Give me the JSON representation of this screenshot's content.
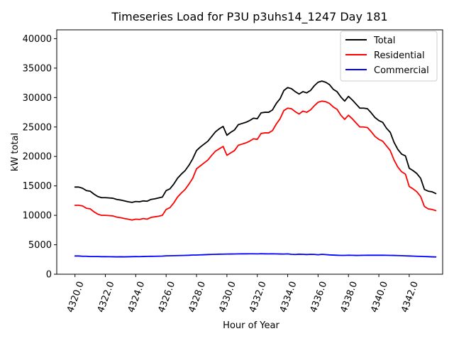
{
  "chart_data": {
    "type": "line",
    "title": "Timeseries Load for P3U p3uhs14_1247  Day 181",
    "xlabel": "Hour of Year",
    "ylabel": "kW total",
    "xlim": [
      4318.8,
      4344.2
    ],
    "ylim": [
      0,
      41500
    ],
    "xticks": [
      4320,
      4322,
      4324,
      4326,
      4328,
      4330,
      4332,
      4334,
      4336,
      4338,
      4340,
      4342
    ],
    "xtick_labels": [
      "4320.0",
      "4322.0",
      "4324.0",
      "4326.0",
      "4328.0",
      "4330.0",
      "4332.0",
      "4334.0",
      "4336.0",
      "4338.0",
      "4340.0",
      "4342.0"
    ],
    "yticks": [
      0,
      5000,
      10000,
      15000,
      20000,
      25000,
      30000,
      35000,
      40000
    ],
    "ytick_labels": [
      "0",
      "5000",
      "10000",
      "15000",
      "20000",
      "25000",
      "30000",
      "35000",
      "40000"
    ],
    "legend_position": "top-right",
    "x": [
      4320.0,
      4320.25,
      4320.5,
      4320.75,
      4321.0,
      4321.25,
      4321.5,
      4321.75,
      4322.0,
      4322.25,
      4322.5,
      4322.75,
      4323.0,
      4323.25,
      4323.5,
      4323.75,
      4324.0,
      4324.25,
      4324.5,
      4324.75,
      4325.0,
      4325.25,
      4325.5,
      4325.75,
      4326.0,
      4326.25,
      4326.5,
      4326.75,
      4327.0,
      4327.25,
      4327.5,
      4327.75,
      4328.0,
      4328.25,
      4328.5,
      4328.75,
      4329.0,
      4329.25,
      4329.5,
      4329.75,
      4330.0,
      4330.25,
      4330.5,
      4330.75,
      4331.0,
      4331.25,
      4331.5,
      4331.75,
      4332.0,
      4332.25,
      4332.5,
      4332.75,
      4333.0,
      4333.25,
      4333.5,
      4333.75,
      4334.0,
      4334.25,
      4334.5,
      4334.75,
      4335.0,
      4335.25,
      4335.5,
      4335.75,
      4336.0,
      4336.25,
      4336.5,
      4336.75,
      4337.0,
      4337.25,
      4337.5,
      4337.75,
      4338.0,
      4338.25,
      4338.5,
      4338.75,
      4339.0,
      4339.25,
      4339.5,
      4339.75,
      4340.0,
      4340.25,
      4340.5,
      4340.75,
      4341.0,
      4341.25,
      4341.5,
      4341.75,
      4342.0,
      4342.25,
      4342.5,
      4342.75,
      4343.0,
      4343.25,
      4343.5,
      4343.75
    ],
    "series": [
      {
        "name": "Total",
        "color": "#000000",
        "values": [
          14800,
          14800,
          14600,
          14200,
          14100,
          13600,
          13200,
          13000,
          13000,
          12950,
          12900,
          12700,
          12600,
          12450,
          12300,
          12200,
          12350,
          12300,
          12450,
          12400,
          12700,
          12800,
          12950,
          13100,
          14200,
          14500,
          15300,
          16300,
          17000,
          17600,
          18500,
          19600,
          21000,
          21600,
          22100,
          22600,
          23400,
          24200,
          24700,
          25100,
          23600,
          24100,
          24500,
          25400,
          25600,
          25800,
          26100,
          26500,
          26400,
          27400,
          27500,
          27500,
          27900,
          29000,
          29800,
          31200,
          31700,
          31500,
          31000,
          30600,
          31000,
          30800,
          31200,
          32000,
          32600,
          32800,
          32600,
          32200,
          31400,
          31000,
          30100,
          29400,
          30200,
          29600,
          28900,
          28200,
          28200,
          28100,
          27400,
          26600,
          26100,
          25800,
          24800,
          24100,
          22400,
          21200,
          20400,
          20100,
          18000,
          17600,
          17100,
          16300,
          14400,
          14100,
          14000,
          13700
        ]
      },
      {
        "name": "Residential",
        "color": "#ff0000",
        "values": [
          11700,
          11700,
          11600,
          11200,
          11100,
          10600,
          10200,
          10000,
          10000,
          9950,
          9900,
          9700,
          9600,
          9450,
          9350,
          9200,
          9350,
          9300,
          9450,
          9350,
          9650,
          9750,
          9850,
          10000,
          11000,
          11300,
          12100,
          13100,
          13800,
          14400,
          15300,
          16300,
          17900,
          18400,
          18900,
          19400,
          20200,
          20900,
          21300,
          21700,
          20200,
          20600,
          21000,
          21900,
          22100,
          22300,
          22600,
          23000,
          22900,
          23900,
          24000,
          24000,
          24400,
          25500,
          26400,
          27800,
          28200,
          28100,
          27600,
          27200,
          27700,
          27500,
          27900,
          28600,
          29200,
          29400,
          29300,
          29000,
          28400,
          28000,
          27000,
          26300,
          27000,
          26400,
          25700,
          25000,
          25000,
          24900,
          24200,
          23400,
          22900,
          22600,
          21800,
          21000,
          19400,
          18200,
          17400,
          17000,
          14900,
          14500,
          14000,
          13200,
          11500,
          11100,
          11000,
          10800
        ]
      },
      {
        "name": "Commercial",
        "color": "#0000ff",
        "values": [
          3100,
          3100,
          3050,
          3050,
          3000,
          3000,
          3000,
          2980,
          2980,
          2970,
          2960,
          2950,
          2960,
          2950,
          2960,
          2980,
          3000,
          2990,
          3010,
          3030,
          3040,
          3050,
          3060,
          3080,
          3120,
          3140,
          3150,
          3170,
          3180,
          3200,
          3220,
          3260,
          3260,
          3290,
          3310,
          3340,
          3360,
          3380,
          3400,
          3410,
          3420,
          3430,
          3440,
          3450,
          3460,
          3460,
          3470,
          3470,
          3450,
          3480,
          3460,
          3450,
          3470,
          3450,
          3430,
          3420,
          3450,
          3380,
          3350,
          3400,
          3380,
          3340,
          3380,
          3360,
          3300,
          3380,
          3330,
          3280,
          3250,
          3220,
          3200,
          3200,
          3230,
          3210,
          3190,
          3200,
          3210,
          3220,
          3220,
          3220,
          3220,
          3220,
          3210,
          3200,
          3190,
          3170,
          3150,
          3120,
          3100,
          3080,
          3050,
          3030,
          3000,
          2980,
          2950,
          2930
        ]
      }
    ]
  }
}
